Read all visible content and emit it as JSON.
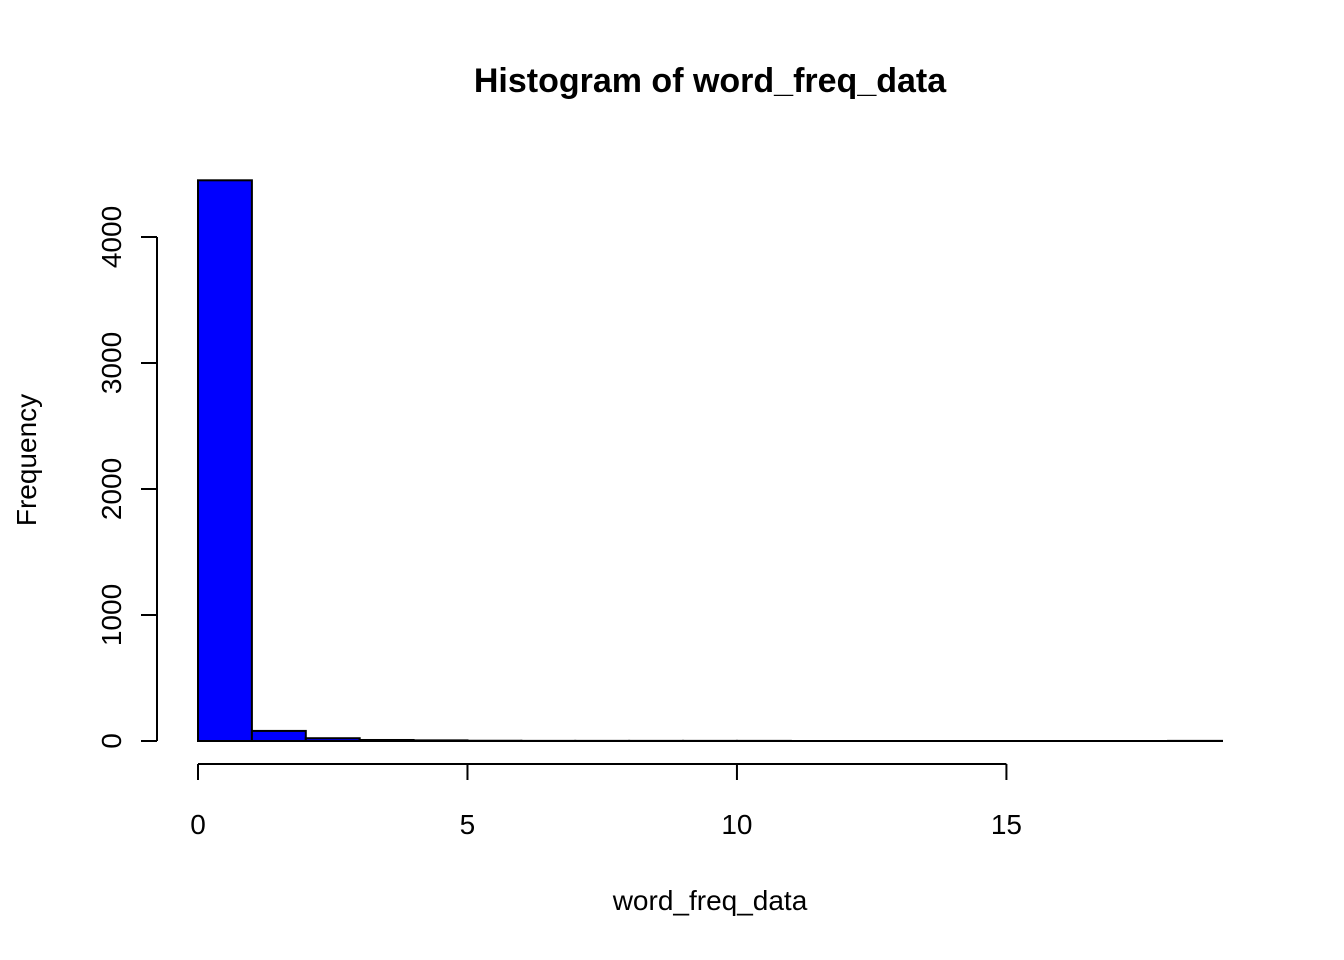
{
  "chart_data": {
    "type": "bar",
    "subtype": "histogram",
    "title": "Histogram of word_freq_data",
    "xlabel": "word_freq_data",
    "ylabel": "Frequency",
    "bins": [
      {
        "from": 0,
        "to": 1,
        "count": 4450
      },
      {
        "from": 1,
        "to": 2,
        "count": 80
      },
      {
        "from": 2,
        "to": 3,
        "count": 22
      },
      {
        "from": 3,
        "to": 4,
        "count": 8
      },
      {
        "from": 4,
        "to": 5,
        "count": 5
      },
      {
        "from": 5,
        "to": 6,
        "count": 2
      },
      {
        "from": 6,
        "to": 7,
        "count": 1
      },
      {
        "from": 7,
        "to": 8,
        "count": 1
      },
      {
        "from": 8,
        "to": 9,
        "count": 1
      },
      {
        "from": 9,
        "to": 10,
        "count": 1
      },
      {
        "from": 10,
        "to": 11,
        "count": 1
      },
      {
        "from": 11,
        "to": 12,
        "count": 0
      },
      {
        "from": 12,
        "to": 13,
        "count": 0
      },
      {
        "from": 13,
        "to": 14,
        "count": 0
      },
      {
        "from": 14,
        "to": 15,
        "count": 0
      },
      {
        "from": 15,
        "to": 16,
        "count": 0
      },
      {
        "from": 16,
        "to": 17,
        "count": 0
      },
      {
        "from": 17,
        "to": 18,
        "count": 0
      },
      {
        "from": 18,
        "to": 19,
        "count": 1
      }
    ],
    "x_ticks": [
      0,
      5,
      10,
      15
    ],
    "y_ticks": [
      0,
      1000,
      2000,
      3000,
      4000
    ],
    "xlim": [
      0,
      19
    ],
    "ylim": [
      0,
      4450
    ],
    "grid": false,
    "legend": "none",
    "colors": {
      "bar_fill": "#0000ff",
      "bar_stroke": "#000000"
    }
  }
}
